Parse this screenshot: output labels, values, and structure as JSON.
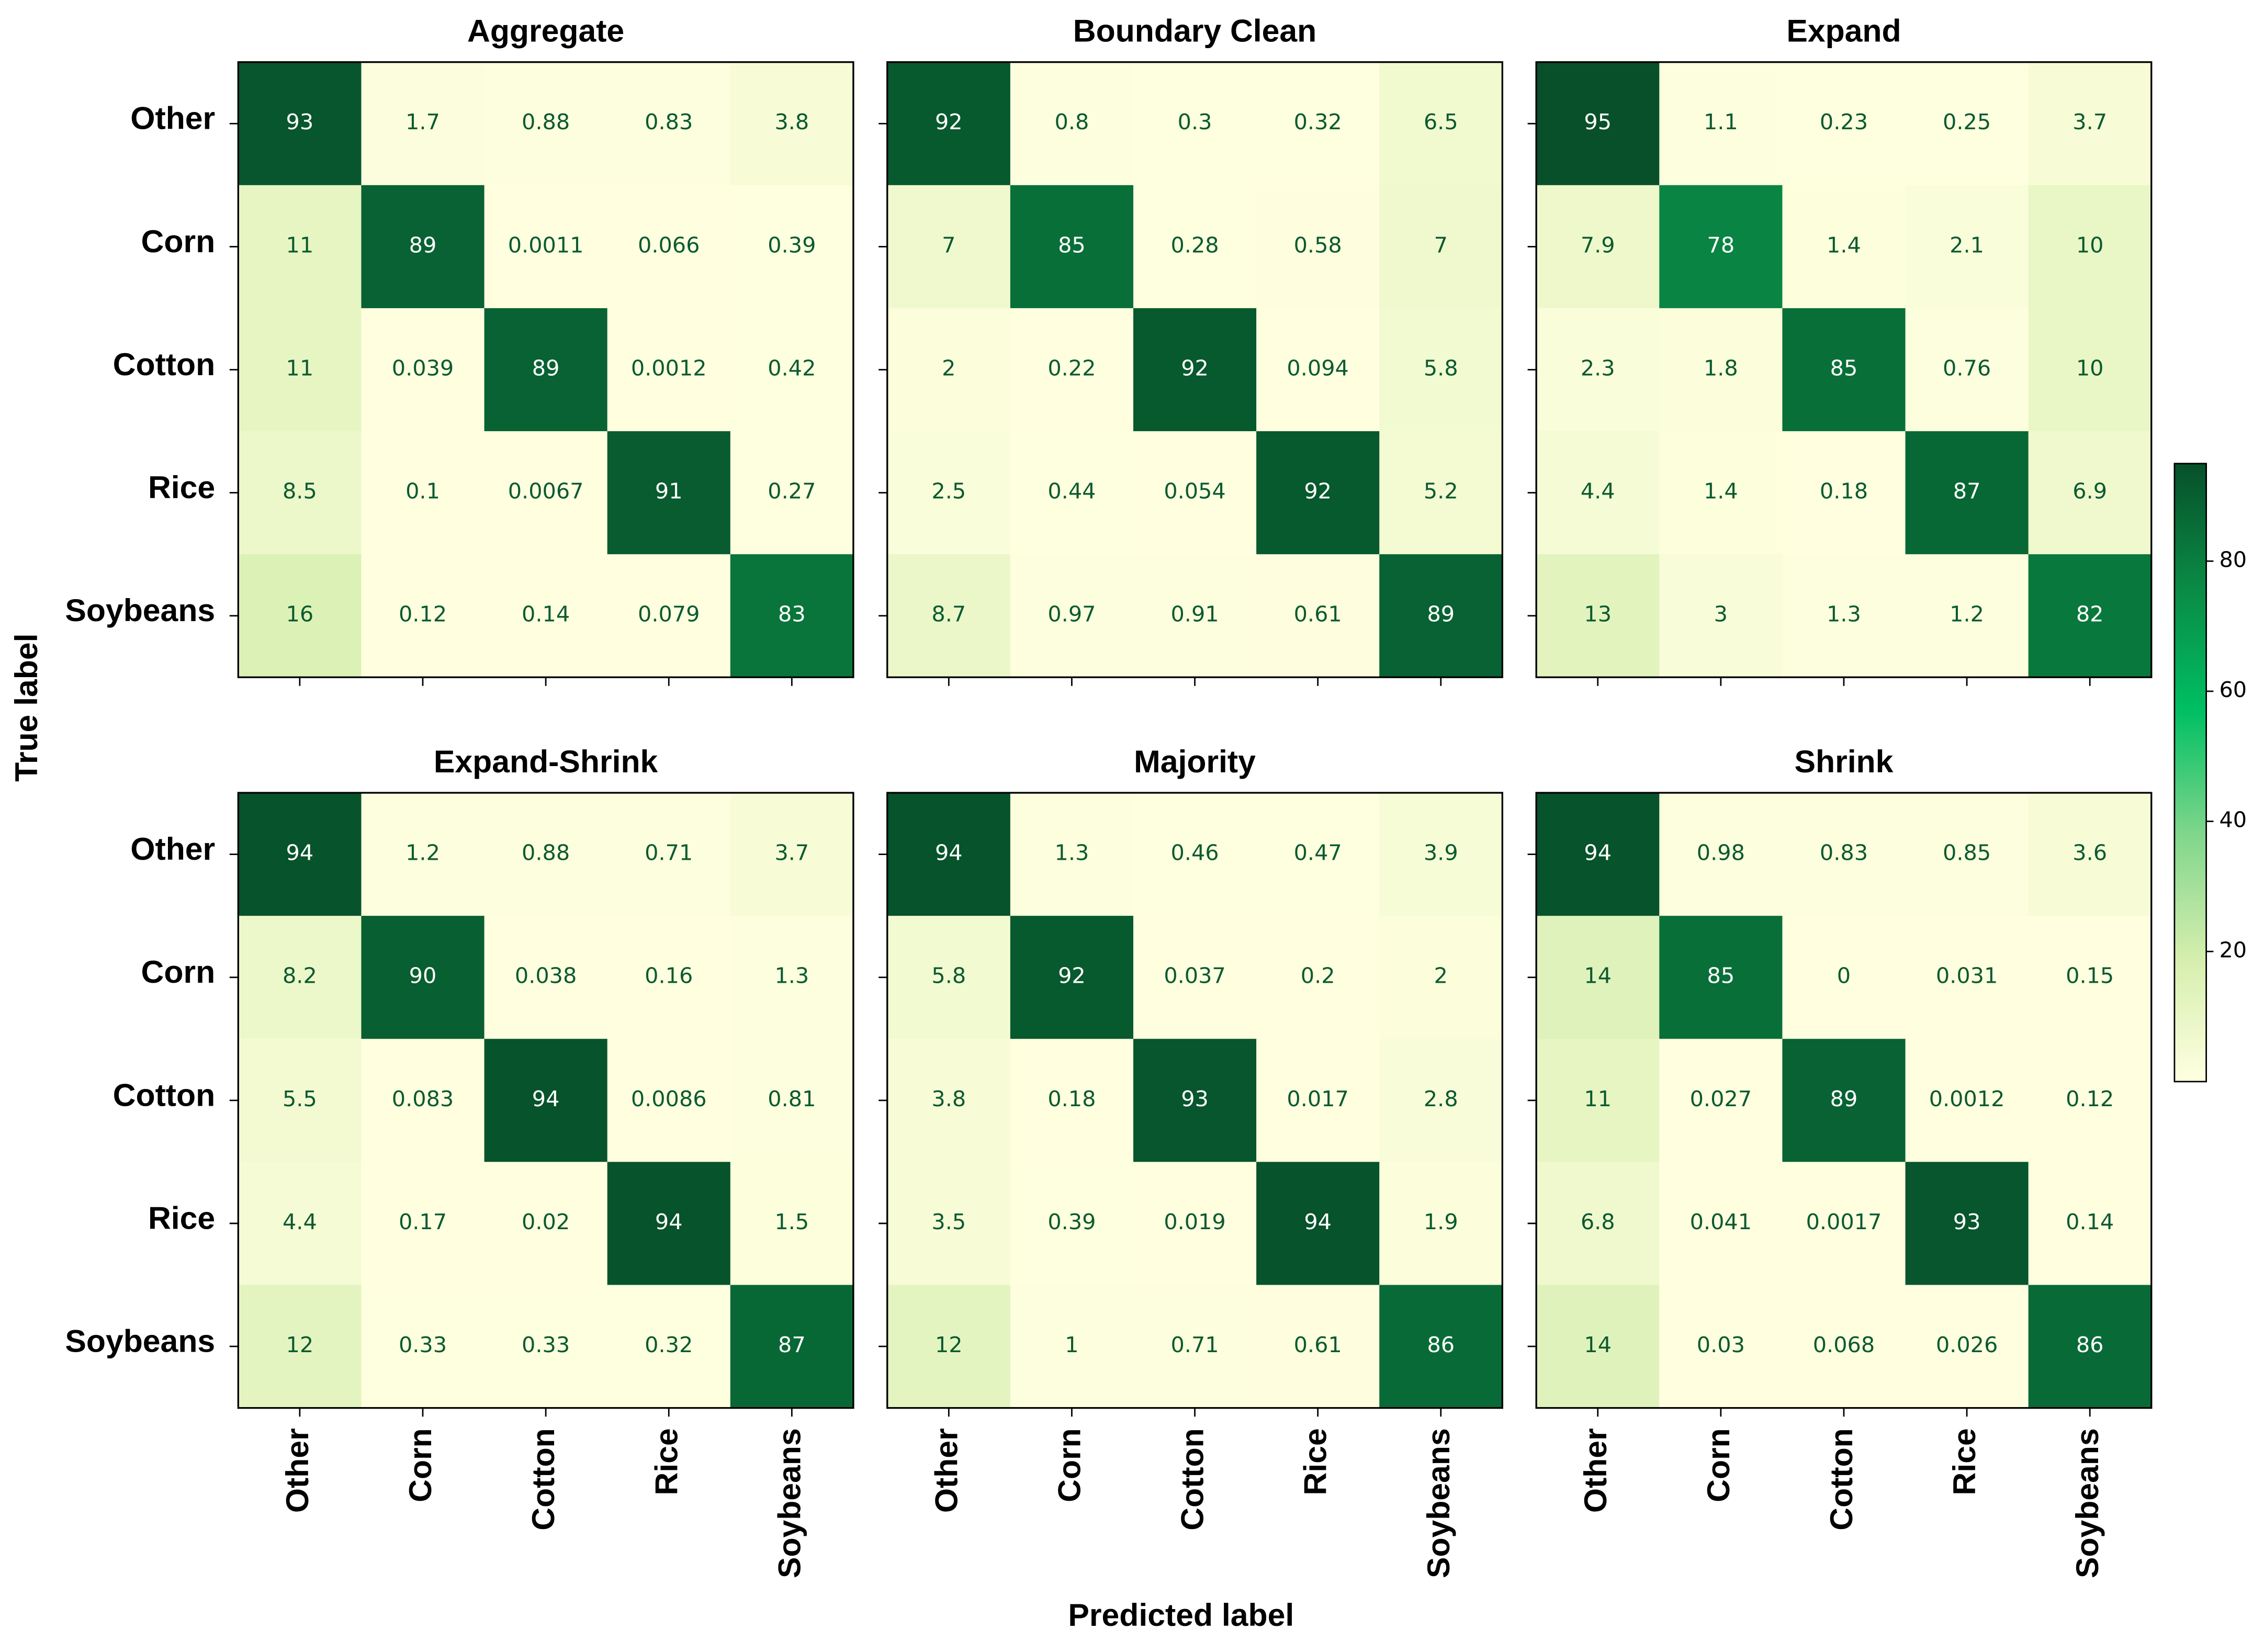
{
  "figure": {
    "xlabel": "Predicted label",
    "ylabel": "True label",
    "categories": [
      "Other",
      "Corn",
      "Cotton",
      "Rice",
      "Soybeans"
    ],
    "colorbar": {
      "lim": [
        0,
        95
      ],
      "ticks": [
        20,
        40,
        60,
        80
      ],
      "colors": [
        "#ffffe0",
        "#d5eeae",
        "#80d68c",
        "#00bf63",
        "#0a8a45",
        "#07502a"
      ]
    }
  },
  "chart_data": [
    {
      "type": "heatmap",
      "title": "Aggregate",
      "values": [
        [
          93,
          1.7,
          0.88,
          0.83,
          3.8
        ],
        [
          11,
          89,
          0.0011,
          0.066,
          0.39
        ],
        [
          11,
          0.039,
          89,
          0.0012,
          0.42
        ],
        [
          8.5,
          0.1,
          0.0067,
          91,
          0.27
        ],
        [
          16,
          0.12,
          0.14,
          0.079,
          83
        ]
      ]
    },
    {
      "type": "heatmap",
      "title": "Boundary Clean",
      "values": [
        [
          92,
          0.8,
          0.3,
          0.32,
          6.5
        ],
        [
          7,
          85,
          0.28,
          0.58,
          7
        ],
        [
          2,
          0.22,
          92,
          0.094,
          5.8
        ],
        [
          2.5,
          0.44,
          0.054,
          92,
          5.2
        ],
        [
          8.7,
          0.97,
          0.91,
          0.61,
          89
        ]
      ]
    },
    {
      "type": "heatmap",
      "title": "Expand",
      "values": [
        [
          95,
          1.1,
          0.23,
          0.25,
          3.7
        ],
        [
          7.9,
          78,
          1.4,
          2.1,
          10
        ],
        [
          2.3,
          1.8,
          85,
          0.76,
          10
        ],
        [
          4.4,
          1.4,
          0.18,
          87,
          6.9
        ],
        [
          13,
          3,
          1.3,
          1.2,
          82
        ]
      ]
    },
    {
      "type": "heatmap",
      "title": "Expand-Shrink",
      "values": [
        [
          94,
          1.2,
          0.88,
          0.71,
          3.7
        ],
        [
          8.2,
          90,
          0.038,
          0.16,
          1.3
        ],
        [
          5.5,
          0.083,
          94,
          0.0086,
          0.81
        ],
        [
          4.4,
          0.17,
          0.02,
          94,
          1.5
        ],
        [
          12,
          0.33,
          0.33,
          0.32,
          87
        ]
      ]
    },
    {
      "type": "heatmap",
      "title": "Majority",
      "values": [
        [
          94,
          1.3,
          0.46,
          0.47,
          3.9
        ],
        [
          5.8,
          92,
          0.037,
          0.2,
          2
        ],
        [
          3.8,
          0.18,
          93,
          0.017,
          2.8
        ],
        [
          3.5,
          0.39,
          0.019,
          94,
          1.9
        ],
        [
          12,
          1,
          0.71,
          0.61,
          86
        ]
      ]
    },
    {
      "type": "heatmap",
      "title": "Shrink",
      "values": [
        [
          94,
          0.98,
          0.83,
          0.85,
          3.6
        ],
        [
          14,
          85,
          0,
          0.031,
          0.15
        ],
        [
          11,
          0.027,
          89,
          0.0012,
          0.12
        ],
        [
          6.8,
          0.041,
          0.0017,
          93,
          0.14
        ],
        [
          14,
          0.03,
          0.068,
          0.026,
          86
        ]
      ]
    }
  ]
}
